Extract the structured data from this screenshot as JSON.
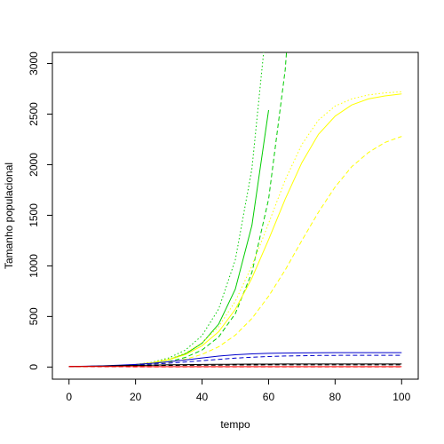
{
  "chart_data": {
    "type": "line",
    "title": "",
    "xlabel": "tempo",
    "ylabel": "Tamanho populacional",
    "xlim": [
      -5,
      105
    ],
    "ylim": [
      -120,
      3110
    ],
    "xticks": [
      0,
      20,
      40,
      60,
      80,
      100
    ],
    "yticks": [
      0,
      500,
      1000,
      1500,
      2000,
      2500,
      3000
    ],
    "x": [
      0,
      5,
      10,
      15,
      20,
      25,
      30,
      35,
      40,
      45,
      50,
      55,
      60,
      65,
      70,
      75,
      80,
      85,
      90,
      95,
      100
    ],
    "series": [
      {
        "color": "#00cc00",
        "dash": "dotted",
        "values": [
          5,
          6,
          8,
          14,
          26,
          48,
          90,
          168,
          310,
          575,
          1060,
          1960,
          3600,
          null,
          null,
          null,
          null,
          null,
          null,
          null,
          null
        ]
      },
      {
        "color": "#00cc00",
        "dash": "solid",
        "values": [
          5,
          6,
          8,
          13,
          22,
          40,
          72,
          130,
          235,
          425,
          770,
          1400,
          2540,
          null,
          null,
          null,
          null,
          null,
          null,
          null,
          null
        ]
      },
      {
        "color": "#00cc00",
        "dash": "dashed",
        "values": [
          5,
          6,
          7,
          11,
          18,
          31,
          54,
          95,
          168,
          298,
          528,
          935,
          1660,
          2940,
          5200,
          null,
          null,
          null,
          null,
          null,
          null
        ]
      },
      {
        "color": "#ffff00",
        "dash": "dotted",
        "values": [
          5,
          7,
          10,
          16,
          27,
          46,
          80,
          140,
          240,
          400,
          650,
          1000,
          1420,
          1850,
          2200,
          2440,
          2580,
          2650,
          2690,
          2710,
          2720
        ]
      },
      {
        "color": "#ffff00",
        "dash": "solid",
        "values": [
          5,
          7,
          10,
          15,
          25,
          42,
          72,
          123,
          210,
          350,
          570,
          880,
          1260,
          1660,
          2020,
          2300,
          2480,
          2590,
          2650,
          2680,
          2700
        ]
      },
      {
        "color": "#ffff00",
        "dash": "dashed",
        "values": [
          5,
          6,
          8,
          12,
          18,
          29,
          47,
          77,
          125,
          200,
          315,
          480,
          700,
          960,
          1250,
          1530,
          1780,
          1980,
          2120,
          2220,
          2280
        ]
      },
      {
        "color": "#0000cc",
        "dash": "solid",
        "values": [
          5,
          8,
          12,
          18,
          26,
          37,
          52,
          70,
          90,
          108,
          121,
          130,
          135,
          138,
          140,
          141,
          142,
          142,
          142,
          142,
          142
        ]
      },
      {
        "color": "#0000cc",
        "dash": "dashed",
        "values": [
          5,
          7,
          10,
          14,
          20,
          28,
          38,
          50,
          63,
          76,
          88,
          97,
          104,
          109,
          112,
          114,
          115,
          116,
          116,
          116,
          116
        ]
      },
      {
        "color": "#000000",
        "dash": "solid",
        "values": [
          5,
          7,
          10,
          13,
          16,
          19,
          22,
          24,
          26,
          27,
          28,
          29,
          29,
          30,
          30,
          30,
          30,
          30,
          30,
          30,
          30
        ]
      },
      {
        "color": "#000000",
        "dash": "dashed",
        "values": [
          5,
          6,
          8,
          10,
          12,
          14,
          16,
          17,
          18,
          19,
          20,
          20,
          21,
          21,
          21,
          21,
          21,
          21,
          21,
          21,
          21
        ]
      },
      {
        "color": "#ff0000",
        "dash": "solid",
        "values": [
          5,
          5,
          5,
          5,
          5,
          4,
          4,
          4,
          4,
          4,
          4,
          4,
          4,
          4,
          4,
          4,
          4,
          4,
          4,
          4,
          4
        ]
      },
      {
        "color": "#ff0000",
        "dash": "dashed",
        "values": [
          5,
          4,
          3,
          3,
          2,
          2,
          2,
          2,
          2,
          2,
          2,
          2,
          2,
          2,
          2,
          2,
          2,
          2,
          2,
          2,
          2
        ]
      }
    ],
    "grid": false,
    "legend": "none"
  }
}
